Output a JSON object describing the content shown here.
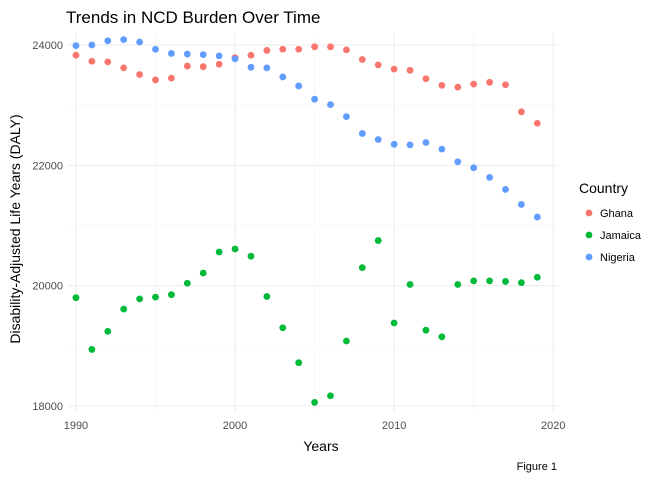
{
  "chart_data": {
    "type": "scatter",
    "title": "Trends in NCD Burden Over Time",
    "xlabel": "Years",
    "ylabel": "Disability-Adjusted Life Years (DALY)",
    "caption": "Figure 1",
    "xlim": [
      1989.5,
      2020.3
    ],
    "ylim": [
      17900,
      24200
    ],
    "x_ticks": [
      1990,
      2000,
      2010,
      2020
    ],
    "y_ticks": [
      18000,
      20000,
      22000,
      24000
    ],
    "grid": true,
    "legend": {
      "title": "Country",
      "position": "right"
    },
    "series": [
      {
        "name": "Ghana",
        "color": "#f8766d",
        "x": [
          1990,
          1991,
          1992,
          1993,
          1994,
          1995,
          1996,
          1997,
          1998,
          1999,
          2000,
          2001,
          2002,
          2003,
          2004,
          2005,
          2006,
          2007,
          2008,
          2009,
          2010,
          2011,
          2012,
          2013,
          2014,
          2015,
          2016,
          2017,
          2018,
          2019
        ],
        "values": [
          23830,
          23730,
          23720,
          23620,
          23510,
          23420,
          23450,
          23650,
          23640,
          23680,
          23790,
          23830,
          23910,
          23930,
          23930,
          23970,
          23970,
          23920,
          23760,
          23670,
          23600,
          23580,
          23440,
          23330,
          23300,
          23350,
          23380,
          23340,
          22890,
          22700
        ]
      },
      {
        "name": "Jamaica",
        "color": "#00ba38",
        "x": [
          1990,
          1991,
          1992,
          1993,
          1994,
          1995,
          1996,
          1997,
          1998,
          1999,
          2000,
          2001,
          2002,
          2003,
          2004,
          2005,
          2006,
          2007,
          2008,
          2009,
          2010,
          2011,
          2012,
          2013,
          2014,
          2015,
          2016,
          2017,
          2018,
          2019
        ],
        "values": [
          19800,
          18940,
          19240,
          19610,
          19780,
          19810,
          19850,
          20040,
          20210,
          20560,
          20610,
          20490,
          19820,
          19300,
          18720,
          18060,
          18170,
          19080,
          20300,
          20750,
          19380,
          20020,
          19260,
          19150,
          20020,
          20080,
          20080,
          20070,
          20050,
          20140
        ]
      },
      {
        "name": "Nigeria",
        "color": "#619cff",
        "x": [
          1990,
          1991,
          1992,
          1993,
          1994,
          1995,
          1996,
          1997,
          1998,
          1999,
          2000,
          2001,
          2002,
          2003,
          2004,
          2005,
          2006,
          2007,
          2008,
          2009,
          2010,
          2011,
          2012,
          2013,
          2014,
          2015,
          2016,
          2017,
          2018,
          2019
        ],
        "values": [
          23990,
          24000,
          24070,
          24090,
          24050,
          23930,
          23860,
          23850,
          23840,
          23820,
          23770,
          23630,
          23620,
          23470,
          23320,
          23100,
          23010,
          22810,
          22530,
          22430,
          22350,
          22340,
          22380,
          22270,
          22060,
          21960,
          21800,
          21600,
          21350,
          21140
        ]
      }
    ]
  }
}
